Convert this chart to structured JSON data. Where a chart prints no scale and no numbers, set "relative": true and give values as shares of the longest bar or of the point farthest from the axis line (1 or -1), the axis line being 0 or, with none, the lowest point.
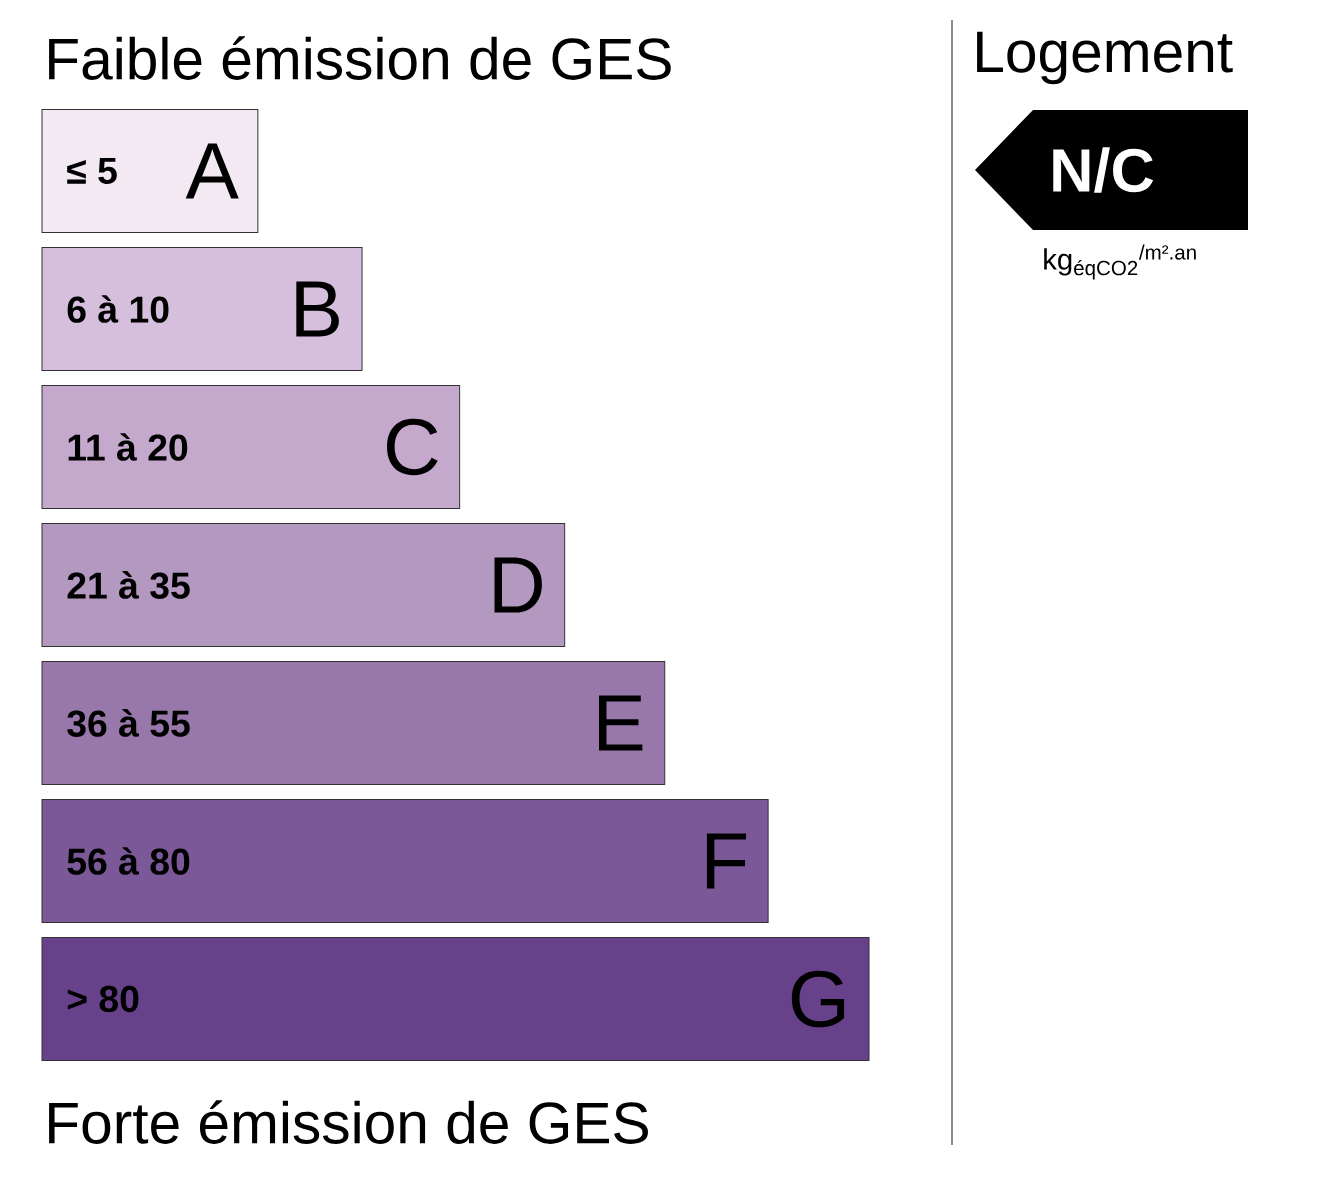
{
  "chart_data": {
    "type": "bar",
    "orientation": "horizontal",
    "relative": true,
    "title": "Faible émission de GES",
    "categories": [
      "≤ 5",
      "6 à 10",
      "11 à 20",
      "21 à 35",
      "36 à 55",
      "56 à 80",
      "> 80"
    ],
    "values": [
      0.261,
      0.387,
      0.505,
      0.632,
      0.753,
      0.878,
      1
    ],
    "colors": [
      "#f2e9f2",
      "#d5bfdc",
      "#c4a9cc",
      "#b398c0",
      "#9878aa",
      "#7b5898",
      "#67428b"
    ],
    "annotations": [
      "Forte émission de GES",
      "Logement",
      "N/C",
      "kg$_{éqCO2}$$^{/m².an}$",
      {
        "text": "A",
        "x": 0.261,
        "y": "≤ 5"
      },
      {
        "text": "B",
        "x": 0.387,
        "y": "6 à 10"
      },
      {
        "text": "C",
        "x": 0.505,
        "y": "11 à 20"
      },
      {
        "text": "D",
        "x": 0.632,
        "y": "21 à 35"
      },
      {
        "text": "E",
        "x": 0.753,
        "y": "36 à 55"
      },
      {
        "text": "F",
        "x": 0.878,
        "y": "56 à 80"
      },
      {
        "text": "G",
        "x": 1,
        "y": "> 80"
      }
    ]
  }
}
